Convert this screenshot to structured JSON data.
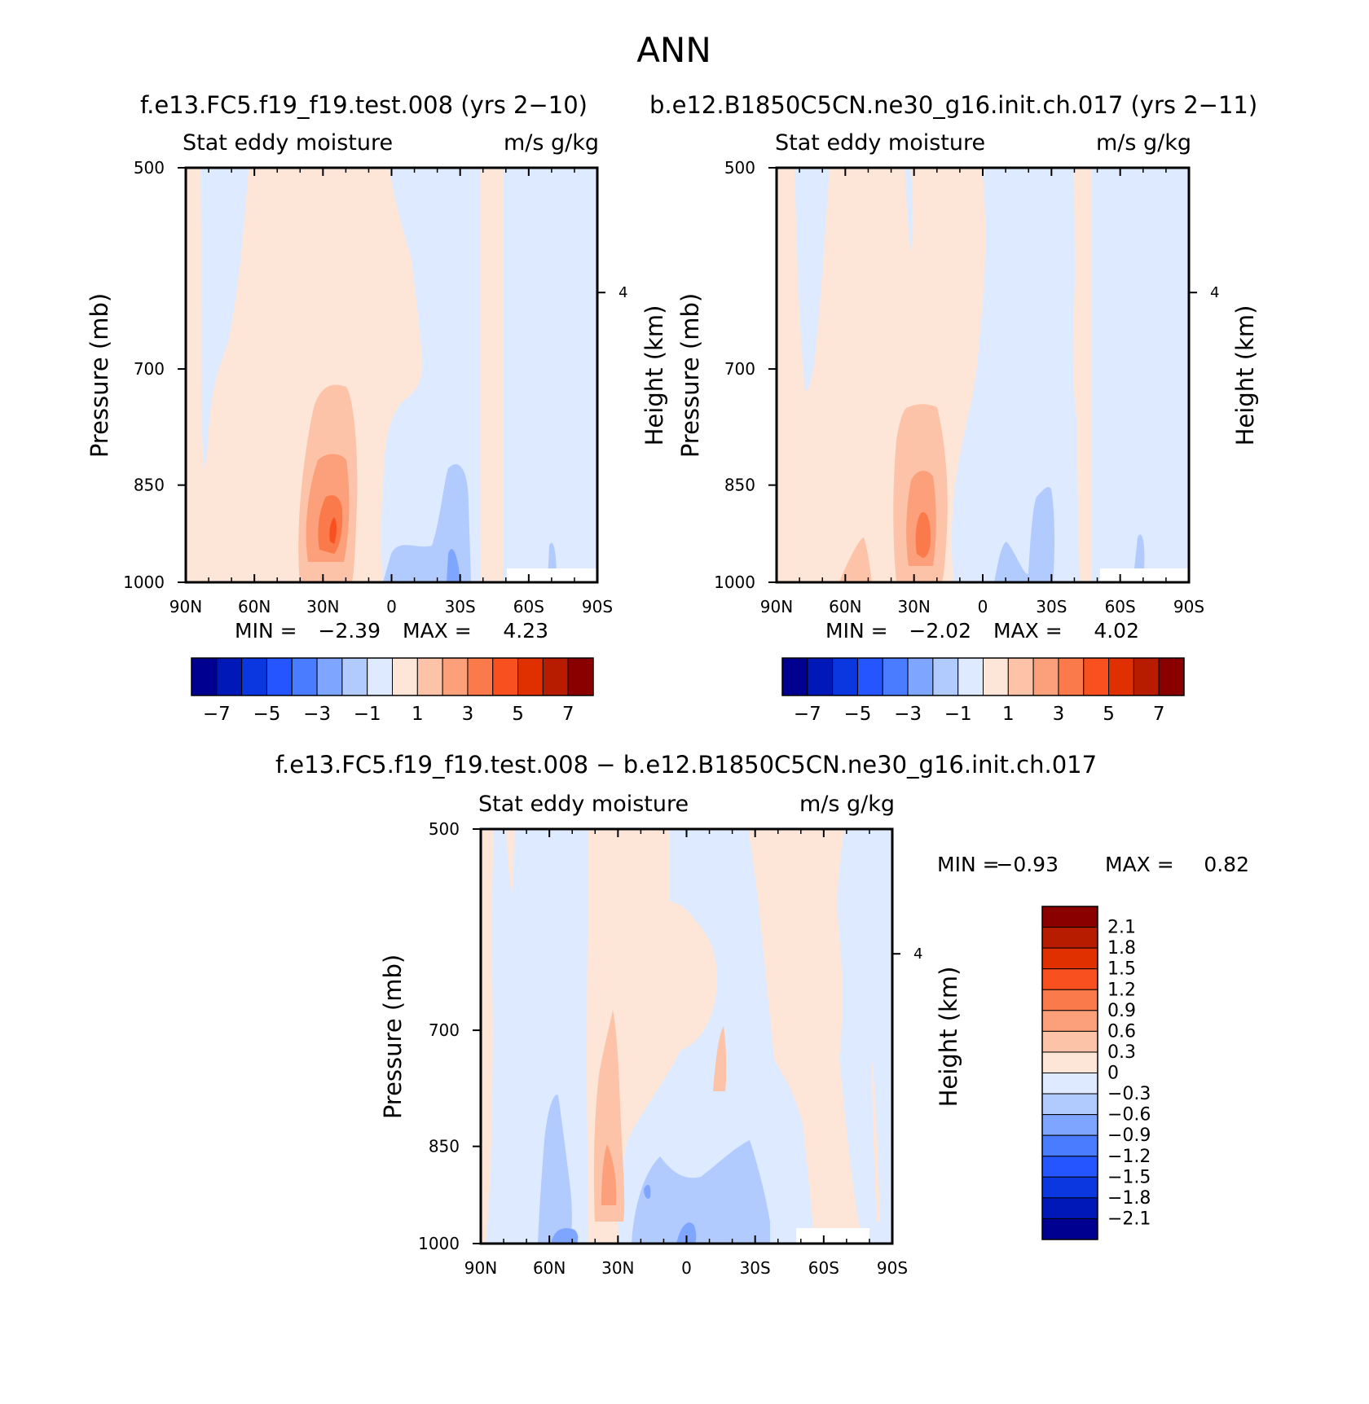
{
  "figure": {
    "title": "ANN"
  },
  "chart_data": [
    {
      "type": "heatmap",
      "case_title": "f.e13.FC5.f19_f19.test.008 (yrs 2−10)",
      "left_label": "Stat eddy moisture",
      "right_label": "m/s g/kg",
      "xlabel": "",
      "ylabel": "Pressure (mb)",
      "y2label": "Height (km)",
      "x_ticks": [
        "90N",
        "60N",
        "30N",
        "0",
        "30S",
        "60S",
        "90S"
      ],
      "y_ticks": [
        "500",
        "700",
        "850",
        "1000"
      ],
      "y2_ticks": [
        "4"
      ],
      "min_label": "MIN =",
      "min_value": "−2.39",
      "max_label": "MAX =",
      "max_value": "4.23",
      "colorbar_levels": [
        "−7",
        "−5",
        "−3",
        "−1",
        "1",
        "3",
        "5",
        "7"
      ],
      "colors": [
        "#000090",
        "#0018b8",
        "#0a37e0",
        "#2455ff",
        "#4a7cff",
        "#7ea5ff",
        "#b2cbff",
        "#ddeaff",
        "#fde6d8",
        "#fcc3a8",
        "#fba07a",
        "#fa7a4b",
        "#f9501f",
        "#e03000",
        "#b81c00",
        "#8a0000"
      ]
    },
    {
      "type": "heatmap",
      "case_title": "b.e12.B1850C5CN.ne30_g16.init.ch.017 (yrs 2−11)",
      "left_label": "Stat eddy moisture",
      "right_label": "m/s g/kg",
      "xlabel": "",
      "ylabel": "Pressure (mb)",
      "y2label": "Height (km)",
      "x_ticks": [
        "90N",
        "60N",
        "30N",
        "0",
        "30S",
        "60S",
        "90S"
      ],
      "y_ticks": [
        "500",
        "700",
        "850",
        "1000"
      ],
      "y2_ticks": [
        "4"
      ],
      "min_label": "MIN =",
      "min_value": "−2.02",
      "max_label": "MAX =",
      "max_value": "4.02",
      "colorbar_levels": [
        "−7",
        "−5",
        "−3",
        "−1",
        "1",
        "3",
        "5",
        "7"
      ],
      "colors": [
        "#000090",
        "#0018b8",
        "#0a37e0",
        "#2455ff",
        "#4a7cff",
        "#7ea5ff",
        "#b2cbff",
        "#ddeaff",
        "#fde6d8",
        "#fcc3a8",
        "#fba07a",
        "#fa7a4b",
        "#f9501f",
        "#e03000",
        "#b81c00",
        "#8a0000"
      ]
    },
    {
      "type": "heatmap",
      "case_title": "f.e13.FC5.f19_f19.test.008 − b.e12.B1850C5CN.ne30_g16.init.ch.017",
      "left_label": "Stat eddy moisture",
      "right_label": "m/s g/kg",
      "xlabel": "",
      "ylabel": "Pressure (mb)",
      "y2label": "Height (km)",
      "x_ticks": [
        "90N",
        "60N",
        "30N",
        "0",
        "30S",
        "60S",
        "90S"
      ],
      "y_ticks": [
        "500",
        "700",
        "850",
        "1000"
      ],
      "y2_ticks": [
        "4"
      ],
      "min_label": "MIN =",
      "min_value": "−0.93",
      "max_label": "MAX =",
      "max_value": "0.82",
      "colorbar_levels": [
        "2.1",
        "1.8",
        "1.5",
        "1.2",
        "0.9",
        "0.6",
        "0.3",
        "0",
        "−0.3",
        "−0.6",
        "−0.9",
        "−1.2",
        "−1.5",
        "−1.8",
        "−2.1"
      ],
      "colors": [
        "#8a0000",
        "#b81c00",
        "#e03000",
        "#f9501f",
        "#fa7a4b",
        "#fba07a",
        "#fcc3a8",
        "#fde6d8",
        "#ddeaff",
        "#b2cbff",
        "#7ea5ff",
        "#4a7cff",
        "#2455ff",
        "#0a37e0",
        "#0018b8",
        "#000090"
      ]
    }
  ]
}
